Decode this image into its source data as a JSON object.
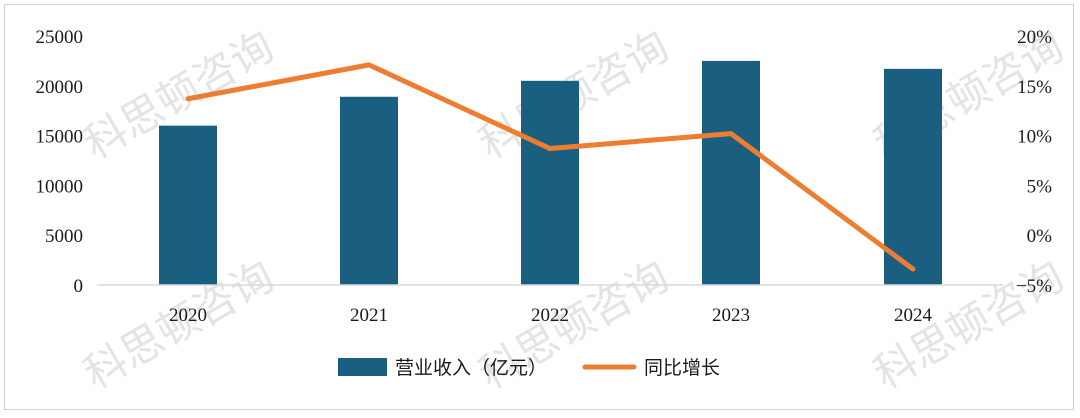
{
  "chart_data": {
    "type": "bar+line",
    "categories": [
      "2020",
      "2021",
      "2022",
      "2023",
      "2024"
    ],
    "series": [
      {
        "name": "营业收入（亿元）",
        "type": "bar",
        "axis": "left",
        "color": "#1a5e80",
        "values": [
          16000,
          18900,
          20500,
          22500,
          21700
        ]
      },
      {
        "name": "同比增长",
        "type": "line",
        "axis": "right",
        "color": "#ed7d31",
        "values": [
          13.7,
          17.1,
          8.7,
          10.2,
          -3.4
        ]
      }
    ],
    "y_left": {
      "min": 0,
      "max": 25000,
      "step": 5000,
      "ticks": [
        "0",
        "5000",
        "10000",
        "15000",
        "20000",
        "25000"
      ]
    },
    "y_right": {
      "min": -5,
      "max": 20,
      "step": 5,
      "ticks": [
        "−5%",
        "0%",
        "5%",
        "10%",
        "15%",
        "20%"
      ]
    },
    "grid": false,
    "legend_position": "bottom"
  },
  "watermark": "科思顿咨询"
}
